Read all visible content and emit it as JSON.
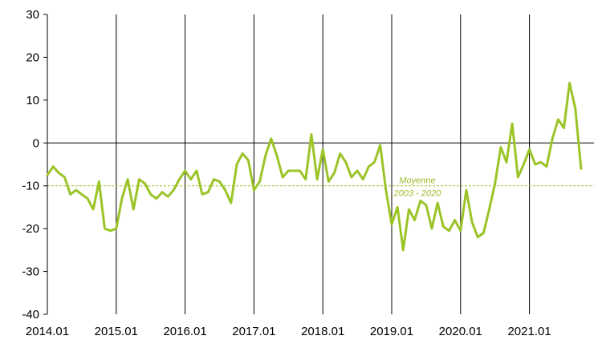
{
  "chart_data": {
    "type": "line",
    "title": "",
    "xlabel": "",
    "ylabel": "",
    "ylim": [
      -40,
      30
    ],
    "yticks": [
      30,
      20,
      10,
      0,
      -10,
      -20,
      -30,
      -40
    ],
    "xticks": [
      "2014.01",
      "2015.01",
      "2016.01",
      "2017.01",
      "2018.01",
      "2019.01",
      "2020.01",
      "2021.01"
    ],
    "grid": "vertical lines at year starts",
    "colors": {
      "series": "#9bc428",
      "average": "#9bc428",
      "axis": "#000000"
    },
    "series": [
      {
        "values": [
          -7.5,
          -5.5,
          -7,
          -8,
          -12,
          -11,
          -12,
          -13,
          -15.5,
          -9,
          -20,
          -20.5,
          -20,
          -13,
          -8.5,
          -15.5,
          -8.5,
          -9.5,
          -12,
          -13,
          -11.5,
          -12.5,
          -11,
          -8.5,
          -6.5,
          -8.5,
          -6.5,
          -12,
          -11.5,
          -8.5,
          -9,
          -11,
          -14,
          -5,
          -2.5,
          -4,
          -11,
          -9,
          -3,
          1,
          -3,
          -8,
          -6.5,
          -6.5,
          -6.5,
          -8.5,
          2,
          -8.5,
          -1.5,
          -9,
          -7,
          -2.5,
          -4.5,
          -8,
          -6.5,
          -8.5,
          -5.5,
          -4.5,
          -0.5,
          -11,
          -19,
          -15,
          -25,
          -15.5,
          -18,
          -13.5,
          -14.5,
          -20,
          -14,
          -19.5,
          -20.5,
          -18,
          -20.5,
          -11,
          -18.5,
          -22,
          -21,
          -15.5,
          -9.5,
          -1,
          -4.5,
          4.5,
          -8,
          -5,
          -1.5,
          -5,
          -4.5,
          -5.5,
          1,
          5.5,
          3.5,
          14,
          8,
          -6
        ]
      }
    ],
    "reference_line": {
      "value": -10,
      "label_line1": "Moyenne",
      "label_line2": "2003 - 2020"
    }
  }
}
